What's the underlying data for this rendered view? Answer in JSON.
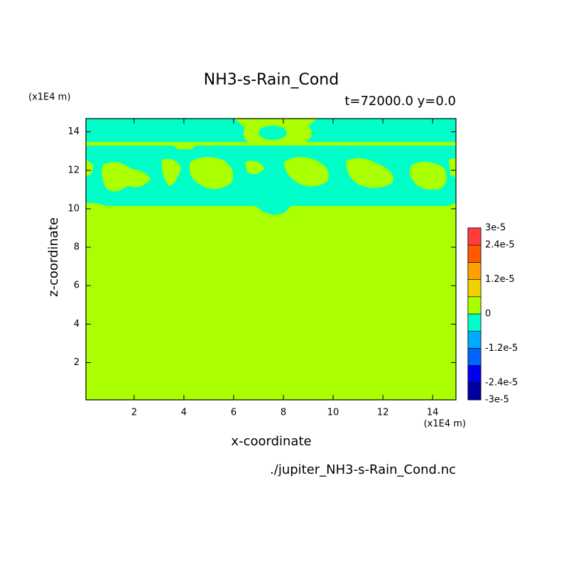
{
  "chart_data": {
    "type": "contour",
    "title": "NH3-s-Rain_Cond",
    "subtitle": "t=72000.0 y=0.0",
    "x_label": "x-coordinate",
    "y_label": "z-coordinate",
    "x_unit": "(x1E4 m)",
    "y_unit": "(x1E4 m)",
    "footer": "./jupiter_NH3-s-Rain_Cond.nc",
    "xlim": [
      0.0625,
      14.9375
    ],
    "ylim": [
      0.0625,
      14.6875
    ],
    "xticks": [
      2,
      4,
      6,
      8,
      10,
      12,
      14
    ],
    "yticks": [
      2,
      4,
      6,
      8,
      10,
      12,
      14
    ],
    "colorbar": {
      "bounds": [
        -3e-05,
        -2.4e-05,
        -1.8e-05,
        -1.2e-05,
        -6e-06,
        0,
        6e-06,
        1.2e-05,
        1.8e-05,
        2.4e-05,
        3e-05
      ],
      "colors": [
        "#0000a0",
        "#0000f0",
        "#0064ff",
        "#00aaff",
        "#00ffc8",
        "#aaff00",
        "#f0d200",
        "#ffa000",
        "#ff5a00",
        "#ff3c3c"
      ],
      "ticks": [
        {
          "value": 3e-05,
          "label": "3e-5"
        },
        {
          "value": 2.4e-05,
          "label": "2.4e-5"
        },
        {
          "value": 1.2e-05,
          "label": "1.2e-5"
        },
        0,
        {
          "value": -1.2e-05,
          "label": "-1.2e-5"
        },
        {
          "value": -2.4e-05,
          "label": "-2.4e-5"
        },
        {
          "value": -3e-05,
          "label": "-3e-5"
        }
      ]
    }
  }
}
